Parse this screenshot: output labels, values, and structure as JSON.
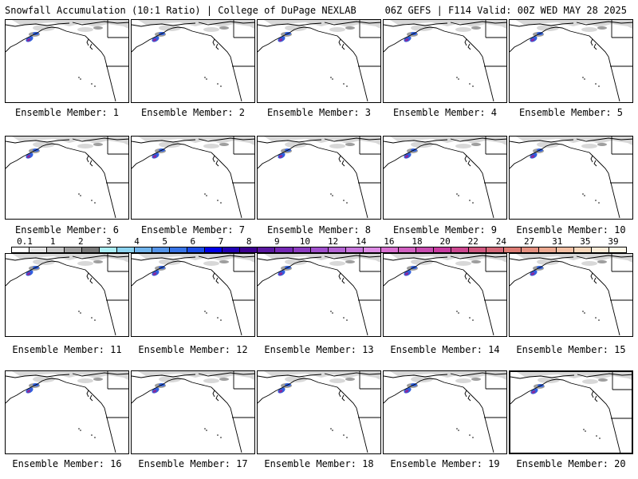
{
  "header": {
    "title": "Snowfall Accumulation (10:1 Ratio) | College of DuPage NEXLAB",
    "run_info": "06Z GEFS | F114 Valid: 00Z WED MAY 28 2025"
  },
  "colorbar": {
    "ticks": [
      "0.1",
      "1",
      "2",
      "3",
      "4",
      "5",
      "6",
      "7",
      "8",
      "9",
      "10",
      "12",
      "14",
      "16",
      "18",
      "20",
      "22",
      "24",
      "27",
      "31",
      "35",
      "39"
    ],
    "colors": [
      "#ffffff",
      "#e6e6e6",
      "#c8c8c8",
      "#a0a0a0",
      "#787878",
      "#aaeef4",
      "#8cd4f0",
      "#70b4ec",
      "#5494e8",
      "#3874e6",
      "#1c4ce6",
      "#0000e6",
      "#2000b4",
      "#3c0090",
      "#5a18a0",
      "#7428b4",
      "#8c3cc0",
      "#a050cc",
      "#b464d4",
      "#c878dc",
      "#dc8ce4",
      "#d870d0",
      "#d060c0",
      "#c84cb0",
      "#c83ca0",
      "#cc4890",
      "#d05880",
      "#d46878",
      "#dc7c74",
      "#e49080",
      "#eca890",
      "#f4c0a4",
      "#f8d8bc",
      "#fcecd8",
      "#fff8e8"
    ]
  },
  "panels": [
    {
      "label": "Ensemble Member: 1"
    },
    {
      "label": "Ensemble Member: 2"
    },
    {
      "label": "Ensemble Member: 3"
    },
    {
      "label": "Ensemble Member: 4"
    },
    {
      "label": "Ensemble Member: 5"
    },
    {
      "label": "Ensemble Member: 6"
    },
    {
      "label": "Ensemble Member: 7"
    },
    {
      "label": "Ensemble Member: 8"
    },
    {
      "label": "Ensemble Member: 9"
    },
    {
      "label": "Ensemble Member: 10"
    },
    {
      "label": "Ensemble Member: 11"
    },
    {
      "label": "Ensemble Member: 12"
    },
    {
      "label": "Ensemble Member: 13"
    },
    {
      "label": "Ensemble Member: 14"
    },
    {
      "label": "Ensemble Member: 15"
    },
    {
      "label": "Ensemble Member: 16"
    },
    {
      "label": "Ensemble Member: 17"
    },
    {
      "label": "Ensemble Member: 18"
    },
    {
      "label": "Ensemble Member: 19"
    },
    {
      "label": "Ensemble Member: 20",
      "selected": true
    }
  ]
}
